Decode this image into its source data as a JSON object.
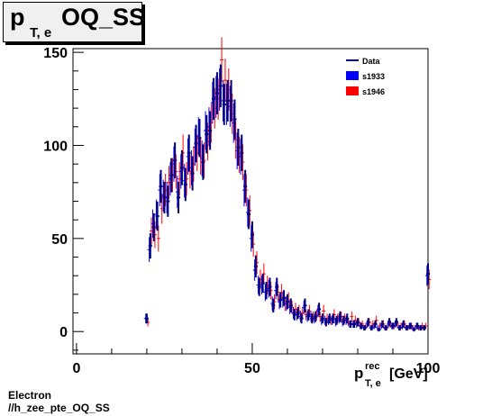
{
  "title": {
    "main": "p",
    "sub": "T, e",
    "rest": "OQ_SS"
  },
  "footer": {
    "line1": "Electron",
    "line2": "//h_zee_pte_OQ_SS"
  },
  "chart_data": {
    "type": "histogram-errorbars",
    "xlabel": {
      "main": "p",
      "sup": "rec",
      "sub": "T, e",
      "unit": "[GeV]"
    },
    "xlim": [
      -1,
      100
    ],
    "ylim": [
      -12,
      152
    ],
    "xticks": [
      "0",
      "50",
      "100"
    ],
    "yticks": [
      "0",
      "50",
      "100",
      "150"
    ],
    "legend": {
      "position": "top-right",
      "entries": [
        "Data",
        "s1933",
        "s1946"
      ]
    },
    "colors": {
      "Data": "#000080",
      "s1933": "#0000ff",
      "s1946": "#ff0000"
    },
    "series": [
      {
        "name": "Data",
        "x": [
          20,
          21,
          22,
          23,
          24,
          25,
          26,
          27,
          28,
          29,
          30,
          31,
          32,
          33,
          34,
          35,
          36,
          37,
          38,
          39,
          40,
          41,
          42,
          43,
          44,
          45,
          46,
          47,
          48,
          49,
          50,
          51,
          52,
          53,
          54,
          55,
          56,
          57,
          58,
          59,
          60,
          61,
          62,
          63,
          64,
          65,
          66,
          67,
          68,
          69,
          70,
          71,
          72,
          73,
          74,
          75,
          76,
          77,
          78,
          79,
          80,
          81,
          82,
          83,
          84,
          85,
          86,
          87,
          88,
          89,
          90,
          91,
          92,
          93,
          94,
          95,
          96,
          97,
          98,
          99,
          100
        ],
        "y": [
          7,
          46,
          56,
          62,
          78,
          72,
          70,
          84,
          92,
          72,
          88,
          79,
          96,
          85,
          101,
          104,
          91,
          106,
          108,
          125,
          128,
          132,
          122,
          124,
          124,
          114,
          99,
          96,
          78,
          63,
          52,
          35,
          24,
          26,
          22,
          24,
          14,
          24,
          17,
          18,
          16,
          14,
          9,
          10,
          7,
          14,
          9,
          7,
          8,
          12,
          7,
          5,
          7,
          7,
          6,
          8,
          6,
          7,
          4,
          4,
          5,
          3,
          2,
          5,
          2,
          4,
          1,
          4,
          2,
          5,
          3,
          5,
          2,
          4,
          2,
          3,
          1,
          3,
          2,
          2,
          31
        ]
      },
      {
        "name": "s1933",
        "x": [
          20,
          21,
          22,
          23,
          24,
          25,
          26,
          27,
          28,
          29,
          30,
          31,
          32,
          33,
          34,
          35,
          36,
          37,
          38,
          39,
          40,
          41,
          42,
          43,
          44,
          45,
          46,
          47,
          48,
          49,
          50,
          51,
          52,
          53,
          54,
          55,
          56,
          57,
          58,
          59,
          60,
          61,
          62,
          63,
          64,
          65,
          66,
          67,
          68,
          69,
          70,
          71,
          72,
          73,
          74,
          75,
          76,
          77,
          78,
          79,
          80,
          81,
          82,
          83,
          84,
          85,
          86,
          87,
          88,
          89,
          90,
          91,
          92,
          93,
          94,
          95,
          96,
          97,
          98,
          99,
          100
        ],
        "y": [
          7,
          44,
          58,
          63,
          76,
          73,
          72,
          82,
          90,
          75,
          86,
          81,
          94,
          88,
          99,
          105,
          93,
          108,
          110,
          123,
          126,
          130,
          124,
          122,
          121,
          112,
          97,
          94,
          76,
          64,
          50,
          33,
          25,
          25,
          21,
          23,
          15,
          22,
          16,
          17,
          15,
          13,
          10,
          9,
          8,
          13,
          8,
          8,
          7,
          11,
          6,
          6,
          6,
          6,
          5,
          7,
          5,
          6,
          4,
          4,
          4,
          3,
          2,
          4,
          2,
          3,
          2,
          3,
          2,
          4,
          3,
          4,
          2,
          3,
          2,
          3,
          2,
          3,
          2,
          2,
          30
        ]
      },
      {
        "name": "s1946",
        "x": [
          20,
          21,
          22,
          23,
          24,
          25,
          26,
          27,
          28,
          29,
          30,
          31,
          32,
          33,
          34,
          35,
          36,
          37,
          38,
          39,
          40,
          41,
          42,
          43,
          44,
          45,
          46,
          47,
          48,
          49,
          50,
          51,
          52,
          53,
          54,
          55,
          56,
          57,
          58,
          59,
          60,
          61,
          62,
          63,
          64,
          65,
          66,
          67,
          68,
          69,
          70,
          71,
          72,
          73,
          74,
          75,
          76,
          77,
          78,
          79,
          80,
          81,
          82,
          83,
          84,
          85,
          86,
          87,
          88,
          89,
          90,
          91,
          92,
          93,
          94,
          95,
          96,
          97,
          98,
          99,
          100
        ],
        "y": [
          5,
          54,
          52,
          50,
          66,
          76,
          80,
          84,
          86,
          82,
          96,
          82,
          86,
          90,
          96,
          94,
          92,
          102,
          112,
          120,
          125,
          146,
          135,
          130,
          117,
          103,
          95,
          91,
          76,
          65,
          47,
          37,
          28,
          31,
          25,
          22,
          16,
          21,
          21,
          15,
          17,
          13,
          12,
          11,
          10,
          9,
          11,
          8,
          9,
          8,
          11,
          7,
          6,
          9,
          7,
          8,
          7,
          5,
          8,
          6,
          5,
          4,
          3,
          5,
          4,
          6,
          3,
          4,
          2,
          4,
          3,
          4,
          3,
          4,
          2,
          3,
          2,
          2,
          3,
          3,
          28
        ]
      }
    ]
  }
}
